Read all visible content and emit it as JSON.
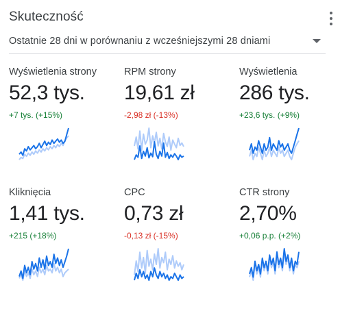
{
  "card": {
    "title": "Skuteczność",
    "date_range": "Ostatnie 28 dni w porównaniu z wcześniejszymi 28 dniami",
    "menu_icon": "more-vert-icon",
    "dropdown_icon": "arrow-drop-down-icon"
  },
  "colors": {
    "current": "#1a73e8",
    "previous": "#aecbfa",
    "positive": "#188038",
    "negative": "#d93025"
  },
  "metrics": [
    {
      "label": "Wyświetlenia strony",
      "value": "52,3 tys.",
      "change": "+7 tys. (+15%)",
      "direction": "up",
      "current": [
        40,
        42,
        39,
        45,
        43,
        47,
        44,
        46,
        48,
        45,
        47,
        50,
        46,
        49,
        52,
        48,
        51,
        49,
        53,
        50,
        52,
        54,
        51,
        53,
        50,
        52,
        58,
        64
      ],
      "previous": [
        35,
        37,
        36,
        40,
        38,
        41,
        39,
        42,
        40,
        43,
        41,
        44,
        42,
        45,
        43,
        46,
        44,
        47,
        45,
        48,
        46,
        49,
        47,
        50,
        48,
        52,
        55,
        57
      ]
    },
    {
      "label": "RPM strony",
      "value": "19,61 zł",
      "change": "-2,98 zł (-13%)",
      "direction": "down",
      "current": [
        22,
        30,
        26,
        45,
        24,
        36,
        28,
        42,
        25,
        33,
        27,
        52,
        31,
        24,
        36,
        28,
        50,
        26,
        34,
        24,
        30,
        26,
        32,
        28,
        22,
        30,
        26,
        28
      ],
      "previous": [
        45,
        60,
        40,
        70,
        38,
        65,
        48,
        55,
        75,
        42,
        62,
        50,
        68,
        45,
        58,
        40,
        66,
        52,
        44,
        60,
        38,
        55,
        48,
        42,
        58,
        46,
        50,
        44
      ]
    },
    {
      "label": "Wyświetlenia",
      "value": "286 tys.",
      "change": "+23,6 tys. (+9%)",
      "direction": "up",
      "current": [
        30,
        32,
        29,
        31,
        30,
        33,
        31,
        29,
        32,
        30,
        31,
        34,
        30,
        32,
        31,
        30,
        33,
        31,
        32,
        30,
        31,
        32,
        30,
        29,
        31,
        33,
        35,
        37
      ],
      "previous": [
        28,
        30,
        27,
        29,
        28,
        31,
        29,
        27,
        30,
        28,
        29,
        31,
        28,
        30,
        29,
        28,
        31,
        29,
        30,
        28,
        29,
        30,
        28,
        27,
        29,
        31,
        32,
        33
      ]
    },
    {
      "label": "Kliknięcia",
      "value": "1,41 tys.",
      "change": "+215 (+18%)",
      "direction": "up",
      "current": [
        40,
        46,
        38,
        52,
        44,
        50,
        42,
        56,
        48,
        54,
        46,
        60,
        50,
        58,
        48,
        62,
        52,
        56,
        50,
        64,
        54,
        60,
        52,
        58,
        50,
        56,
        62,
        70
      ],
      "previous": [
        38,
        42,
        36,
        46,
        40,
        44,
        38,
        48,
        42,
        46,
        40,
        50,
        44,
        48,
        42,
        52,
        46,
        48,
        44,
        54,
        46,
        50,
        44,
        48,
        40,
        44,
        46,
        48
      ]
    },
    {
      "label": "CPC",
      "value": "0,73 zł",
      "change": "-0,13 zł (-15%)",
      "direction": "down",
      "current": [
        24,
        32,
        26,
        36,
        28,
        34,
        26,
        30,
        24,
        34,
        28,
        38,
        30,
        26,
        34,
        28,
        32,
        26,
        30,
        24,
        28,
        26,
        32,
        28,
        24,
        30,
        26,
        28
      ],
      "previous": [
        30,
        46,
        34,
        56,
        38,
        50,
        32,
        58,
        40,
        48,
        36,
        54,
        42,
        60,
        38,
        50,
        44,
        56,
        36,
        48,
        42,
        52,
        38,
        46,
        40,
        44,
        36,
        42
      ]
    },
    {
      "label": "CTR strony",
      "value": "2,70%",
      "change": "+0,06 p.p. (+2%)",
      "direction": "up",
      "current": [
        42,
        46,
        40,
        50,
        44,
        48,
        42,
        52,
        46,
        50,
        44,
        54,
        48,
        52,
        44,
        56,
        48,
        52,
        46,
        58,
        50,
        54,
        46,
        52,
        44,
        50,
        48,
        56
      ],
      "previous": [
        40,
        44,
        38,
        48,
        42,
        46,
        40,
        50,
        44,
        48,
        42,
        52,
        46,
        50,
        42,
        54,
        46,
        50,
        44,
        56,
        48,
        52,
        44,
        50,
        42,
        48,
        46,
        50
      ]
    }
  ]
}
